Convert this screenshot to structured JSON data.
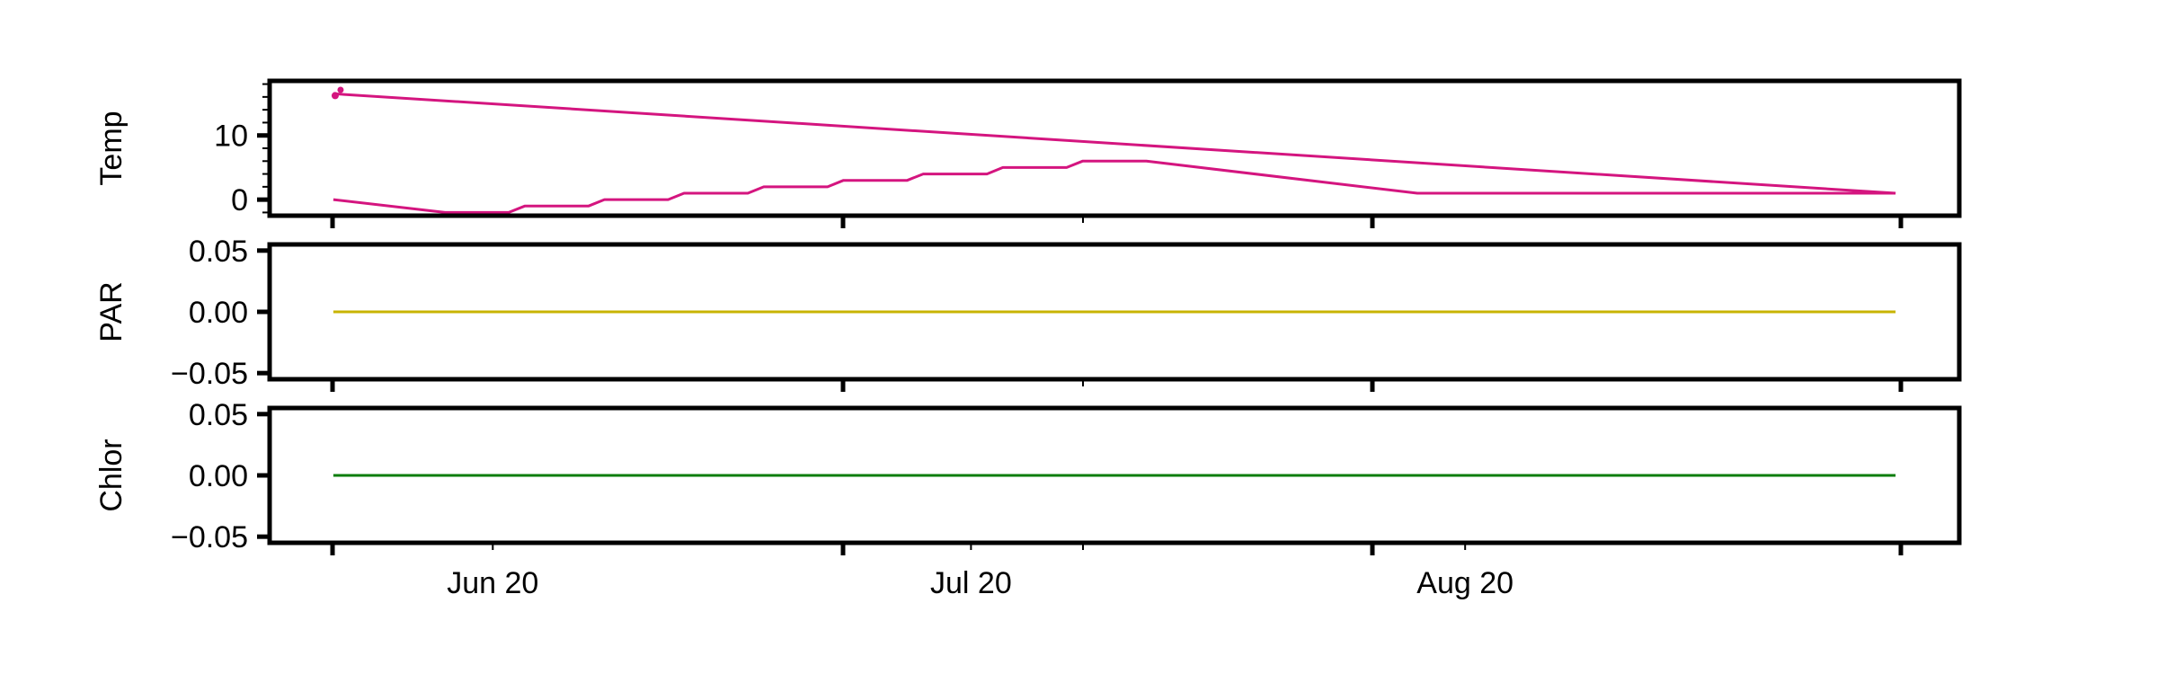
{
  "chart_data": {
    "type": "line",
    "x_axis": {
      "type": "date",
      "range": [
        "2020-06-06",
        "2020-09-20"
      ],
      "tick_labels": [
        {
          "date": "2020-06-20",
          "label": "Jun 20"
        },
        {
          "date": "2020-07-20",
          "label": "Jul 20"
        },
        {
          "date": "2020-08-20",
          "label": "Aug 20"
        }
      ]
    },
    "panels": [
      {
        "ylabel": "Temp",
        "ylim": [
          -2.5,
          18.5
        ],
        "yticks": [
          {
            "value": 0,
            "label": "0"
          },
          {
            "value": 10,
            "label": "10"
          }
        ],
        "series": [
          {
            "color": "#d4157f",
            "x": [
              "2020-06-10",
              "2020-09-16"
            ],
            "y": [
              16.5,
              1
            ]
          },
          {
            "color": "#d4157f",
            "x": [
              "2020-06-10",
              "2020-06-17",
              "2020-06-21",
              "2020-06-22",
              "2020-06-26",
              "2020-06-27",
              "2020-07-01",
              "2020-07-02",
              "2020-07-06",
              "2020-07-07",
              "2020-07-11",
              "2020-07-12",
              "2020-07-16",
              "2020-07-17",
              "2020-07-21",
              "2020-07-22",
              "2020-07-26",
              "2020-07-27",
              "2020-07-31",
              "2020-08-17",
              "2020-09-16"
            ],
            "y": [
              0,
              -2,
              -2,
              -1,
              -1,
              0,
              0,
              1,
              1,
              2,
              2,
              3,
              3,
              4,
              4,
              5,
              5,
              6,
              6,
              1,
              1
            ]
          }
        ]
      },
      {
        "ylabel": "PAR",
        "ylim": [
          -0.055,
          0.055
        ],
        "yticks": [
          {
            "value": 0.05,
            "label": "0.05"
          },
          {
            "value": 0,
            "label": "0.00"
          },
          {
            "value": -0.05,
            "label": "−0.05"
          }
        ],
        "series": [
          {
            "color": "#c8b400",
            "x": [
              "2020-06-10",
              "2020-09-16"
            ],
            "y": [
              0,
              0
            ]
          }
        ]
      },
      {
        "ylabel": "Chlor",
        "ylim": [
          -0.055,
          0.055
        ],
        "yticks": [
          {
            "value": 0.05,
            "label": "0.05"
          },
          {
            "value": 0,
            "label": "0.00"
          },
          {
            "value": -0.05,
            "label": "−0.05"
          }
        ],
        "series": [
          {
            "color": "#0a7d0a",
            "x": [
              "2020-06-10",
              "2020-09-16"
            ],
            "y": [
              0,
              0
            ]
          }
        ]
      }
    ],
    "grid": false,
    "legend": "none"
  }
}
